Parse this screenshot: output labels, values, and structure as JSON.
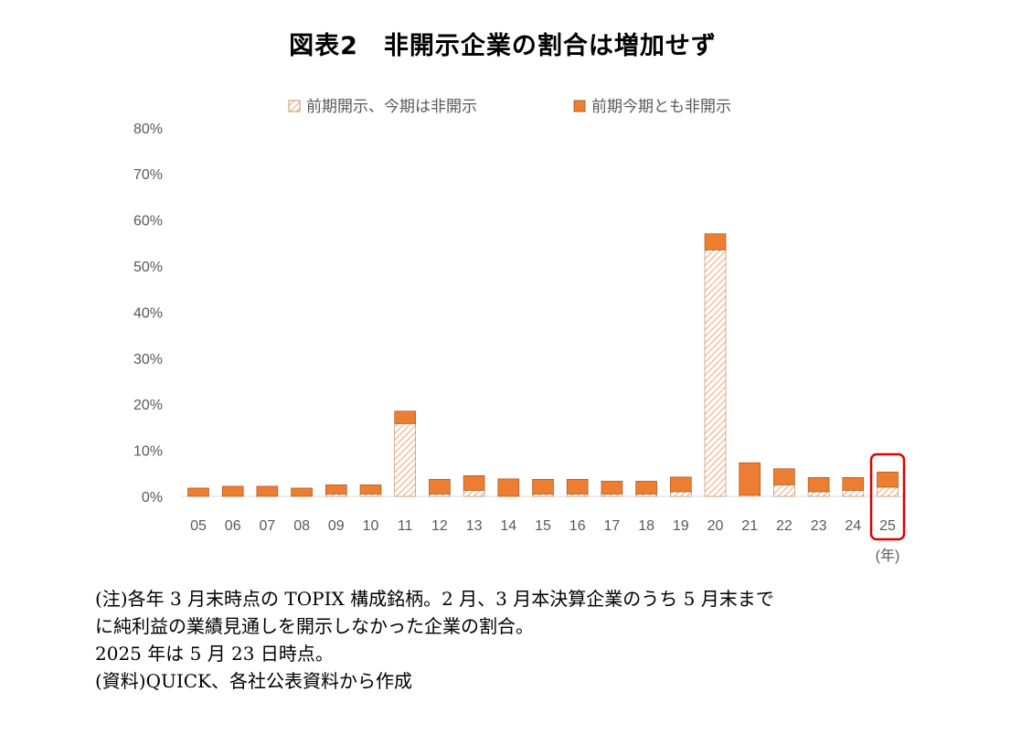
{
  "title": "図表2　非開示企業の割合は増加せず",
  "chart_data": {
    "type": "bar",
    "stacked": true,
    "categories": [
      "05",
      "06",
      "07",
      "08",
      "09",
      "10",
      "11",
      "12",
      "13",
      "14",
      "15",
      "16",
      "17",
      "18",
      "19",
      "20",
      "21",
      "22",
      "23",
      "24",
      "25"
    ],
    "x_unit_label": "(年)",
    "series": [
      {
        "name": "前期開示、今期は非開示",
        "pattern": "hatched",
        "values": [
          0.0,
          0.0,
          0.0,
          0.0,
          0.5,
          0.5,
          15.8,
          0.5,
          1.3,
          0.0,
          0.5,
          0.5,
          0.5,
          0.5,
          1.0,
          53.5,
          0.3,
          2.5,
          1.0,
          1.3,
          2.0
        ]
      },
      {
        "name": "前期今期とも非開示",
        "color": "#ED7D31",
        "values": [
          1.8,
          2.2,
          2.2,
          1.8,
          2.0,
          2.0,
          2.7,
          3.2,
          3.2,
          3.8,
          3.2,
          3.2,
          2.8,
          2.8,
          3.2,
          3.5,
          7.0,
          3.5,
          3.1,
          2.8,
          3.3
        ]
      }
    ],
    "yticks": [
      "0%",
      "10%",
      "20%",
      "30%",
      "40%",
      "50%",
      "60%",
      "70%",
      "80%"
    ],
    "ylim": [
      0,
      80
    ],
    "grid": false,
    "legend_position": "top",
    "highlight_category": "25",
    "highlight_color": "#E00000"
  },
  "notes": [
    "(注)各年 3 月末時点の TOPIX 構成銘柄。2 月、3 月本決算企業のうち 5 月末まで",
    "に純利益の業績見通しを開示しなかった企業の割合。",
    "2025 年は 5 月 23 日時点。",
    "(資料)QUICK、各社公表資料から作成"
  ]
}
